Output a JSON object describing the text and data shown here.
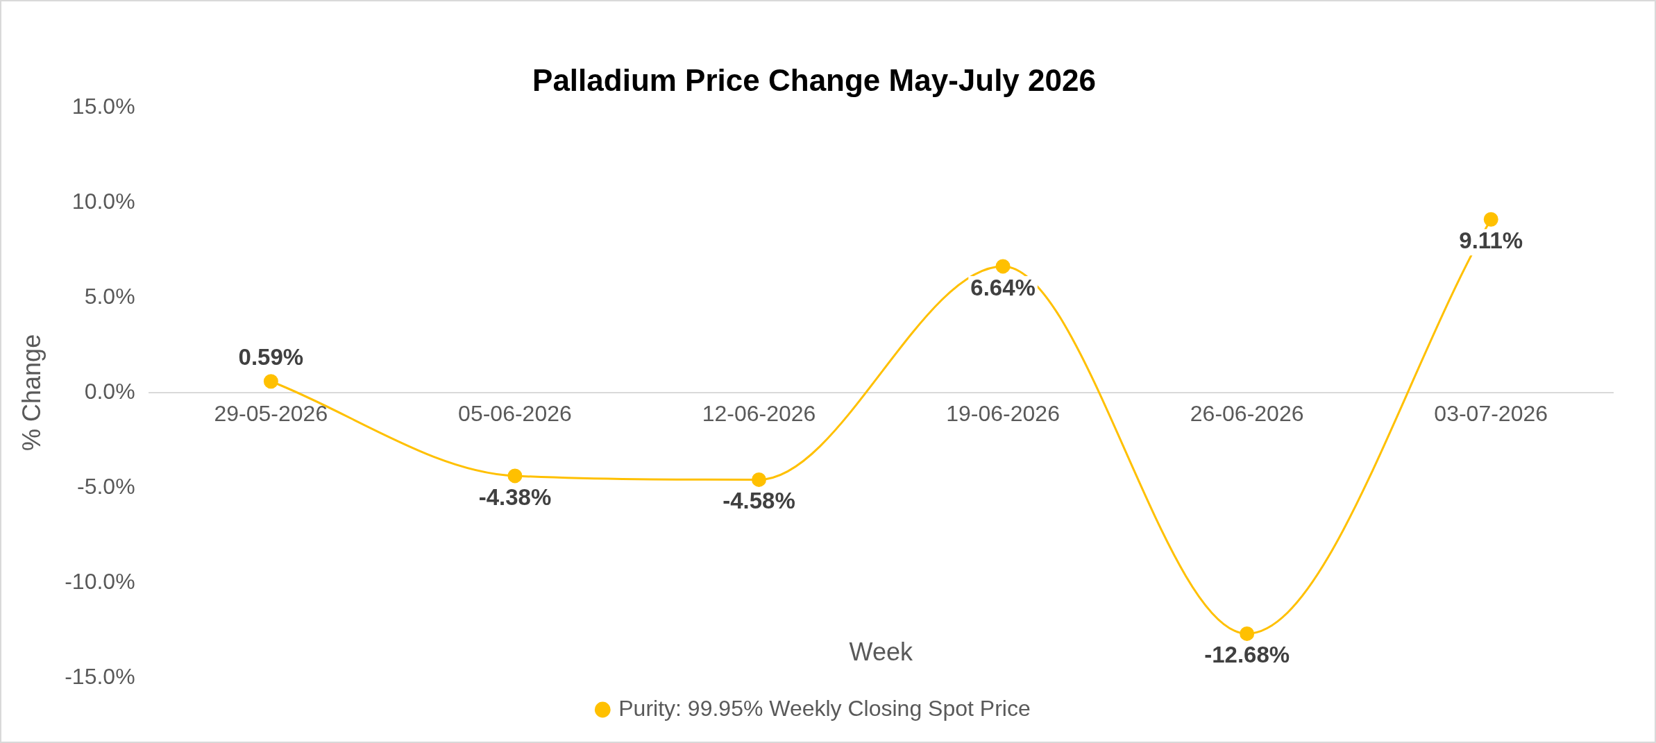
{
  "chart_data": {
    "type": "line",
    "title": "Palladium Price Change May-July 2026",
    "xlabel": "Week",
    "ylabel": "% Change",
    "categories": [
      "29-05-2026",
      "05-06-2026",
      "12-06-2026",
      "19-06-2026",
      "26-06-2026",
      "03-07-2026"
    ],
    "series": [
      {
        "name": "Purity: 99.95% Weekly Closing Spot Price",
        "color": "#ffc000",
        "values": [
          0.59,
          -4.38,
          -4.58,
          6.64,
          -12.68,
          9.11
        ],
        "value_labels": [
          "0.59%",
          "-4.38%",
          "-4.58%",
          "6.64%",
          "-12.68%",
          "9.11%"
        ]
      }
    ],
    "ylim": [
      -15,
      15
    ],
    "yticks": [
      {
        "value": -15,
        "label": "-15.0%"
      },
      {
        "value": -10,
        "label": "-10.0%"
      },
      {
        "value": -5,
        "label": "-5.0%"
      },
      {
        "value": 0,
        "label": "0.0%"
      },
      {
        "value": 5,
        "label": "5.0%"
      },
      {
        "value": 10,
        "label": "10.0%"
      },
      {
        "value": 15,
        "label": "15.0%"
      }
    ],
    "grid": false,
    "legend": "bottom",
    "marker": "circle",
    "line_style": "solid"
  }
}
